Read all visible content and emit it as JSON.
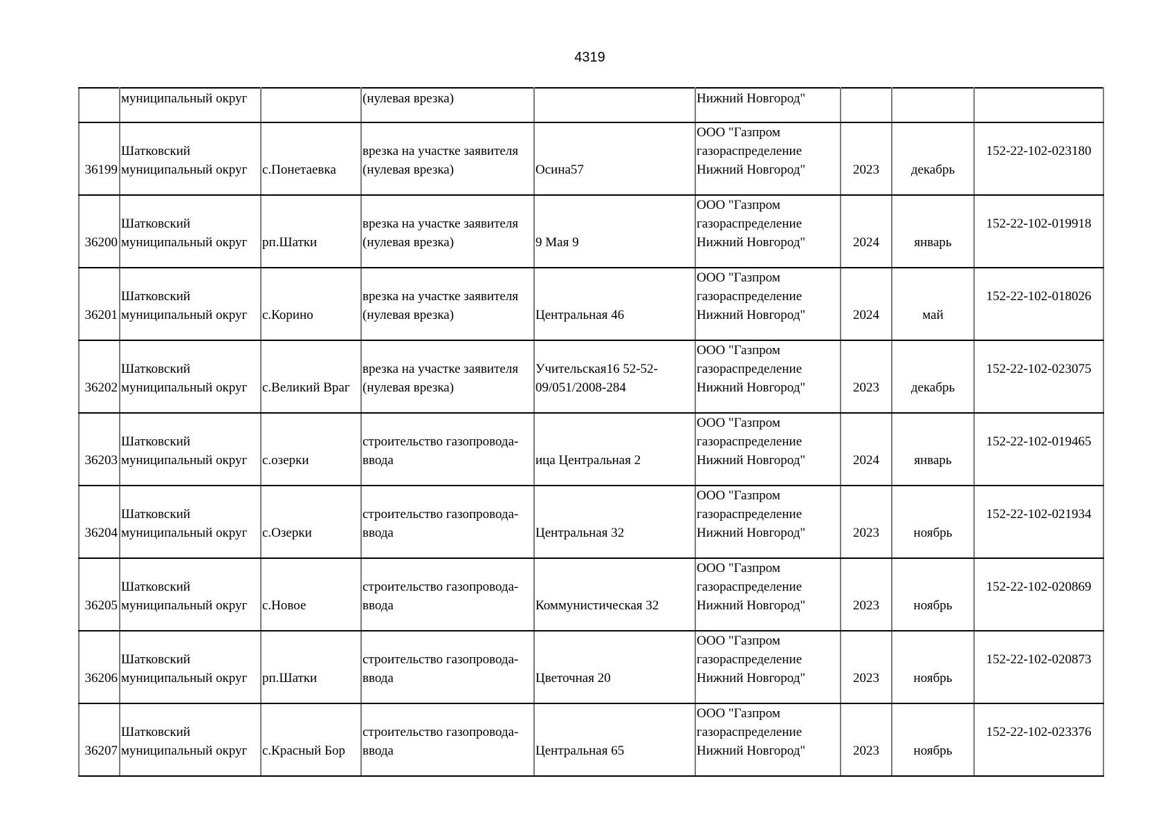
{
  "page_number": "4319",
  "continuation_row": {
    "district": "муниципальный округ",
    "work": "(нулевая врезка)",
    "org": "Нижний Новгород\""
  },
  "rows": [
    {
      "num": "36199",
      "district": [
        "Шатковский",
        "муниципальный округ"
      ],
      "locality": "с.Понетаевка",
      "work": [
        "врезка на участке заявителя",
        "(нулевая врезка)"
      ],
      "address": [
        "Осина57"
      ],
      "org": [
        "ООО \"Газпром",
        "газораспределение",
        "Нижний Новгород\""
      ],
      "year": "2023",
      "month": "декабрь",
      "code": "152-22-102-023180"
    },
    {
      "num": "36200",
      "district": [
        "Шатковский",
        "муниципальный округ"
      ],
      "locality": "рп.Шатки",
      "work": [
        "врезка на участке заявителя",
        "(нулевая врезка)"
      ],
      "address": [
        "9 Мая 9"
      ],
      "org": [
        "ООО \"Газпром",
        "газораспределение",
        "Нижний Новгород\""
      ],
      "year": "2024",
      "month": "январь",
      "code": "152-22-102-019918"
    },
    {
      "num": "36201",
      "district": [
        "Шатковский",
        "муниципальный округ"
      ],
      "locality": "с.Корино",
      "work": [
        "врезка на участке заявителя",
        "(нулевая врезка)"
      ],
      "address": [
        "Центральная 46"
      ],
      "org": [
        "ООО \"Газпром",
        "газораспределение",
        "Нижний Новгород\""
      ],
      "year": "2024",
      "month": "май",
      "code": "152-22-102-018026"
    },
    {
      "num": "36202",
      "district": [
        "Шатковский",
        "муниципальный округ"
      ],
      "locality": "с.Великий Враг",
      "work": [
        "врезка на участке заявителя",
        "(нулевая врезка)"
      ],
      "address": [
        "Учительская16 52-52-",
        "09/051/2008-284"
      ],
      "org": [
        "ООО \"Газпром",
        "газораспределение",
        "Нижний Новгород\""
      ],
      "year": "2023",
      "month": "декабрь",
      "code": "152-22-102-023075"
    },
    {
      "num": "36203",
      "district": [
        "Шатковский",
        "муниципальный округ"
      ],
      "locality": "с.озерки",
      "work": [
        "строительство газопровода-",
        "ввода"
      ],
      "address": [
        "ица Центральная 2"
      ],
      "org": [
        "ООО \"Газпром",
        "газораспределение",
        "Нижний Новгород\""
      ],
      "year": "2024",
      "month": "январь",
      "code": "152-22-102-019465"
    },
    {
      "num": "36204",
      "district": [
        "Шатковский",
        "муниципальный округ"
      ],
      "locality": "с.Озерки",
      "work": [
        "строительство газопровода-",
        "ввода"
      ],
      "address": [
        "Центральная 32"
      ],
      "org": [
        "ООО \"Газпром",
        "газораспределение",
        "Нижний Новгород\""
      ],
      "year": "2023",
      "month": "ноябрь",
      "code": "152-22-102-021934"
    },
    {
      "num": "36205",
      "district": [
        "Шатковский",
        "муниципальный округ"
      ],
      "locality": "с.Новое",
      "work": [
        "строительство газопровода-",
        "ввода"
      ],
      "address": [
        "Коммунистическая 32"
      ],
      "org": [
        "ООО \"Газпром",
        "газораспределение",
        "Нижний Новгород\""
      ],
      "year": "2023",
      "month": "ноябрь",
      "code": "152-22-102-020869"
    },
    {
      "num": "36206",
      "district": [
        "Шатковский",
        "муниципальный округ"
      ],
      "locality": "рп.Шатки",
      "work": [
        "строительство газопровода-",
        "ввода"
      ],
      "address": [
        "Цветочная 20"
      ],
      "org": [
        "ООО \"Газпром",
        "газораспределение",
        "Нижний Новгород\""
      ],
      "year": "2023",
      "month": "ноябрь",
      "code": "152-22-102-020873"
    },
    {
      "num": "36207",
      "district": [
        "Шатковский",
        "муниципальный округ"
      ],
      "locality": "с.Красный Бор",
      "work": [
        "строительство газопровода-",
        "ввода"
      ],
      "address": [
        "Центральная 65"
      ],
      "org": [
        "ООО \"Газпром",
        "газораспределение",
        "Нижний Новгород\""
      ],
      "year": "2023",
      "month": "ноябрь",
      "code": "152-22-102-023376"
    }
  ]
}
